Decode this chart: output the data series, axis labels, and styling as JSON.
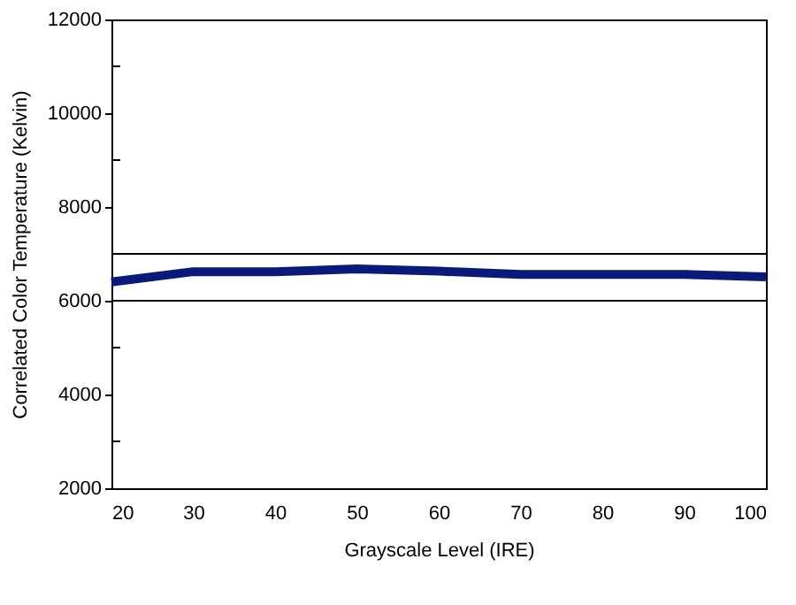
{
  "chart_data": {
    "type": "line",
    "xlabel": "Grayscale Level (IRE)",
    "ylabel": "Correlated Color Temperature (Kelvin)",
    "x": [
      20,
      30,
      40,
      50,
      60,
      70,
      80,
      90,
      100
    ],
    "series": [
      {
        "color": "#0a1a7a",
        "values": [
          6400,
          6620,
          6620,
          6680,
          6630,
          6560,
          6560,
          6560,
          6510
        ]
      }
    ],
    "xlim": [
      20,
      100
    ],
    "xticks": [
      20,
      30,
      40,
      50,
      60,
      70,
      80,
      90,
      100
    ],
    "ylim": [
      2000,
      12000
    ],
    "yticks": [
      2000,
      {
        "value": 3000,
        "label": null
      },
      4000,
      {
        "value": 5000,
        "label": null
      },
      6000,
      {
        "value": 7000,
        "label": null
      },
      8000,
      {
        "value": 9000,
        "label": null
      },
      10000,
      {
        "value": 11000,
        "label": null
      },
      12000
    ],
    "ref_lines": [
      {
        "axis": "y",
        "value": 7000,
        "color": "#000000"
      },
      {
        "axis": "y",
        "value": 6000,
        "color": "#000000"
      }
    ],
    "grid": false,
    "marker": "none",
    "line_style": "solid"
  }
}
